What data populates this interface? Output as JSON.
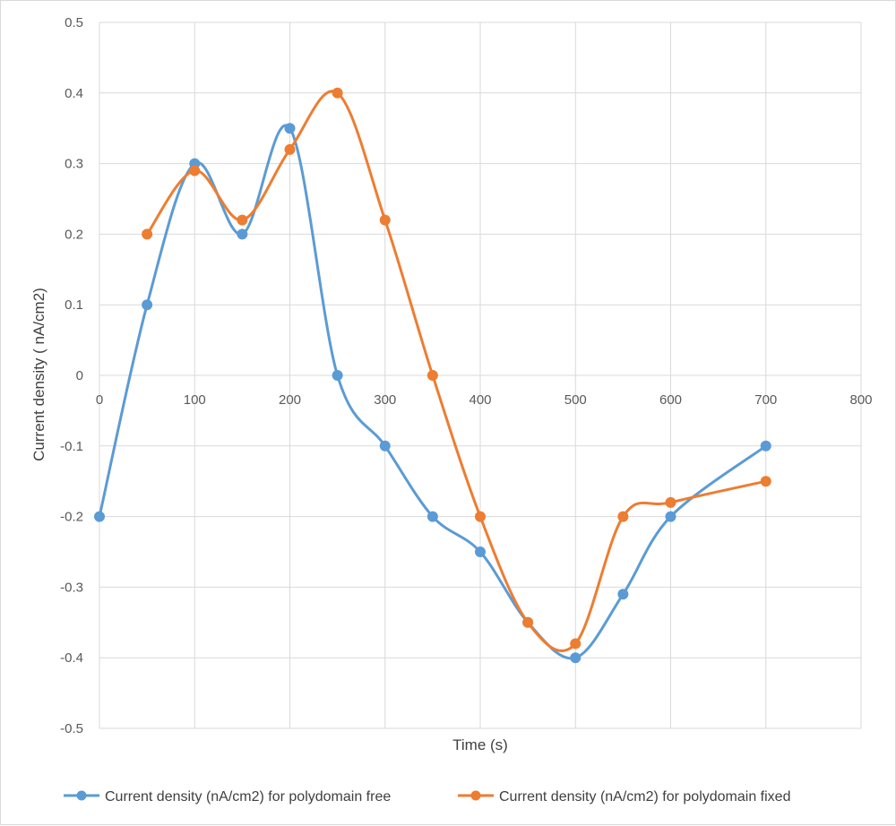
{
  "chart_data": {
    "type": "line",
    "title": "",
    "xlabel": "Time (s)",
    "ylabel": "Current density ( nA/cm2)",
    "xlim": [
      0,
      800
    ],
    "ylim": [
      -0.5,
      0.5
    ],
    "x_ticks": [
      0,
      100,
      200,
      300,
      400,
      500,
      600,
      700,
      800
    ],
    "y_ticks": [
      -0.5,
      -0.4,
      -0.3,
      -0.2,
      -0.1,
      0,
      0.1,
      0.2,
      0.3,
      0.4,
      0.5
    ],
    "grid": true,
    "smooth": true,
    "legend_position": "bottom",
    "series": [
      {
        "name": "Current density (nA/cm2) for polydomain free",
        "color": "#5b9bd5",
        "x": [
          0,
          50,
          100,
          150,
          200,
          250,
          300,
          350,
          400,
          450,
          500,
          550,
          600,
          700
        ],
        "values": [
          -0.2,
          0.1,
          0.3,
          0.2,
          0.35,
          0,
          -0.1,
          -0.2,
          -0.25,
          -0.35,
          -0.4,
          -0.31,
          -0.2,
          -0.1
        ]
      },
      {
        "name": "Current density (nA/cm2) for polydomain fixed",
        "color": "#ed7d31",
        "x": [
          50,
          100,
          150,
          200,
          250,
          300,
          350,
          400,
          450,
          500,
          550,
          600,
          700
        ],
        "values": [
          0.2,
          0.29,
          0.22,
          0.32,
          0.4,
          0.22,
          0,
          -0.2,
          -0.35,
          -0.38,
          -0.2,
          -0.18,
          -0.15
        ]
      }
    ]
  }
}
